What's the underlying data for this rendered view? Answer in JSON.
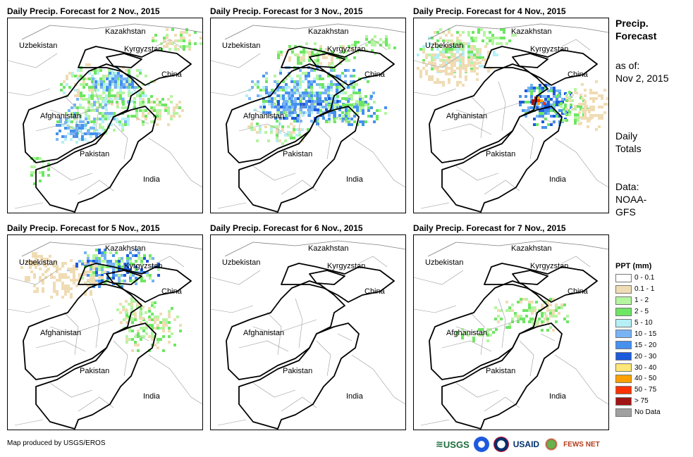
{
  "panels": [
    {
      "title": "Daily Precip. Forecast for 2 Nov., 2015",
      "date": "2 Nov., 2015"
    },
    {
      "title": "Daily Precip. Forecast for 3 Nov., 2015",
      "date": "3 Nov., 2015"
    },
    {
      "title": "Daily Precip. Forecast for 4 Nov., 2015",
      "date": "4 Nov., 2015"
    },
    {
      "title": "Daily Precip. Forecast for 5 Nov., 2015",
      "date": "5 Nov., 2015"
    },
    {
      "title": "Daily Precip. Forecast for 6 Nov., 2015",
      "date": "6 Nov., 2015"
    },
    {
      "title": "Daily Precip. Forecast for 7 Nov., 2015",
      "date": "7 Nov., 2015"
    }
  ],
  "country_labels": {
    "kazakhstan": "Kazakhstan",
    "uzbekistan": "Uzbekistan",
    "kyrgyzstan": "Kyrgyzstan",
    "china": "China",
    "afghanistan": "Afghanistan",
    "pakistan": "Pakistan",
    "india": "India"
  },
  "sidebar": {
    "title_line1": "Precip.",
    "title_line2": "Forecast",
    "asof_line1": "as of:",
    "asof_line2": "Nov 2, 2015",
    "totals_line1": "Daily",
    "totals_line2": "Totals",
    "data_line1": "Data:",
    "data_line2": "NOAA-",
    "data_line3": "GFS"
  },
  "legend": {
    "title": "PPT (mm)",
    "items": [
      {
        "label": "0 - 0.1",
        "color": "#ffffff"
      },
      {
        "label": "0.1 - 1",
        "color": "#f0dcb4"
      },
      {
        "label": "1 - 2",
        "color": "#b4f5a0"
      },
      {
        "label": "2 - 5",
        "color": "#6ee664"
      },
      {
        "label": "5 - 10",
        "color": "#b4f0f5"
      },
      {
        "label": "10 - 15",
        "color": "#78b4f5"
      },
      {
        "label": "15 - 20",
        "color": "#4691ee"
      },
      {
        "label": "20 - 30",
        "color": "#1e5adc"
      },
      {
        "label": "30 - 40",
        "color": "#ffe678"
      },
      {
        "label": "40 - 50",
        "color": "#ffa000"
      },
      {
        "label": "50 - 75",
        "color": "#fa3200"
      },
      {
        "label": "> 75",
        "color": "#a01414"
      },
      {
        "label": "No Data",
        "color": "#a0a0a0"
      }
    ]
  },
  "footer": {
    "credit": "Map produced by USGS/EROS"
  },
  "logos": {
    "usgs": "USGS",
    "usaid": "USAID",
    "fews": "FEWS NET"
  }
}
